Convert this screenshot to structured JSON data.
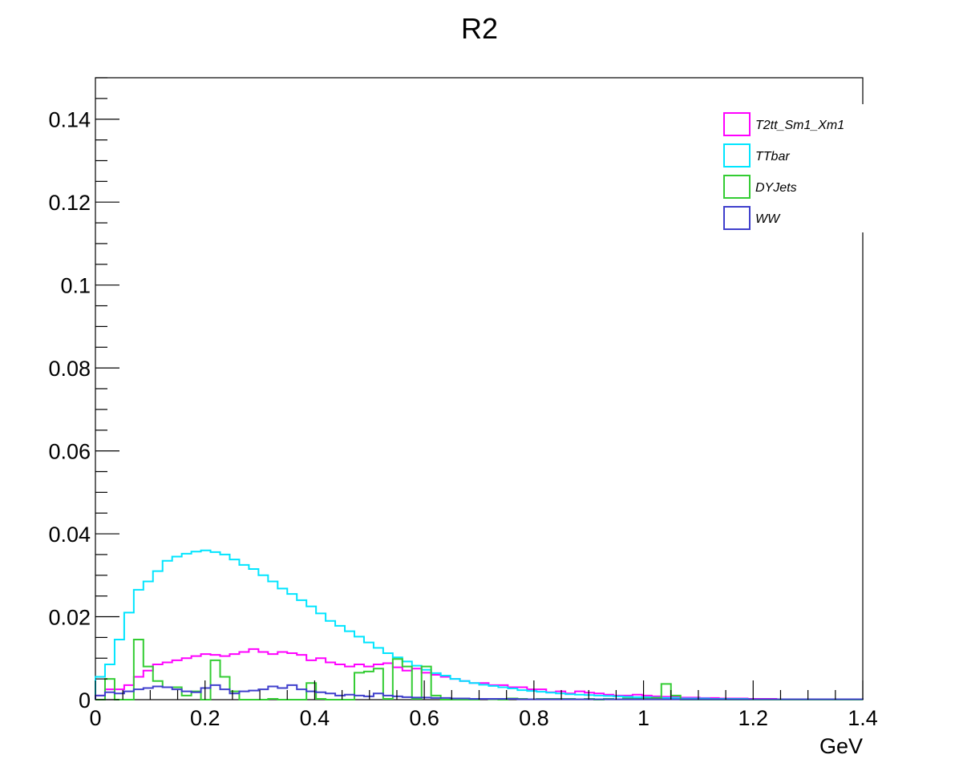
{
  "chart_data": {
    "type": "line",
    "title": "R2",
    "xlabel": "GeV",
    "ylabel": "",
    "xlim": [
      0,
      1.4
    ],
    "ylim": [
      0,
      0.15
    ],
    "x_ticks": [
      "0",
      "0.2",
      "0.4",
      "0.6",
      "0.8",
      "1",
      "1.2",
      "1.4"
    ],
    "y_ticks": [
      "0",
      "0.02",
      "0.04",
      "0.06",
      "0.08",
      "0.1",
      "0.12",
      "0.14"
    ],
    "x_tick_values": [
      0,
      0.2,
      0.4,
      0.6,
      0.8,
      1.0,
      1.2,
      1.4
    ],
    "y_tick_values": [
      0,
      0.02,
      0.04,
      0.06,
      0.08,
      0.1,
      0.12,
      0.14
    ],
    "grid": false,
    "legend_position": "top-right",
    "bin_edges_start": 0,
    "bin_width": 0.0175,
    "series": [
      {
        "name": "T2tt_Sm1_Xm1",
        "color": "#ff00ff",
        "values": [
          0.001,
          0.0025,
          0.0025,
          0.0035,
          0.0055,
          0.007,
          0.0085,
          0.009,
          0.0095,
          0.01,
          0.0105,
          0.011,
          0.0108,
          0.0105,
          0.011,
          0.0115,
          0.0122,
          0.0115,
          0.011,
          0.0115,
          0.0112,
          0.0108,
          0.0095,
          0.01,
          0.009,
          0.0085,
          0.008,
          0.0085,
          0.008,
          0.0085,
          0.0088,
          0.0078,
          0.007,
          0.0075,
          0.0065,
          0.006,
          0.0055,
          0.005,
          0.0045,
          0.004,
          0.004,
          0.0035,
          0.0035,
          0.003,
          0.003,
          0.0025,
          0.0025,
          0.0018,
          0.002,
          0.0015,
          0.002,
          0.0017,
          0.0015,
          0.0012,
          0.001,
          0.001,
          0.0012,
          0.001,
          0.0008,
          0.0007,
          0.0007,
          0.0005,
          0.0005,
          0.0004,
          0.0004,
          0.0003,
          0.0003,
          0.0003,
          0.0002,
          0.0002,
          0.0002,
          0.0001,
          0.0001,
          0.0001,
          0.0001,
          0.0001,
          0.0001,
          0.0001,
          0.0001,
          0.0001
        ]
      },
      {
        "name": "TTbar",
        "color": "#00e5ff",
        "values": [
          0.0055,
          0.0085,
          0.0145,
          0.021,
          0.0265,
          0.0285,
          0.031,
          0.0335,
          0.0345,
          0.0352,
          0.0357,
          0.036,
          0.0356,
          0.035,
          0.0338,
          0.0325,
          0.0315,
          0.03,
          0.0285,
          0.0268,
          0.0255,
          0.024,
          0.0225,
          0.0208,
          0.019,
          0.0178,
          0.0165,
          0.0152,
          0.0138,
          0.0125,
          0.0112,
          0.0102,
          0.0092,
          0.0082,
          0.0072,
          0.0064,
          0.0058,
          0.005,
          0.0045,
          0.004,
          0.0036,
          0.0033,
          0.003,
          0.0027,
          0.0023,
          0.0021,
          0.0019,
          0.0017,
          0.0015,
          0.0013,
          0.0012,
          0.0011,
          0.001,
          0.0009,
          0.0008,
          0.0007,
          0.0006,
          0.0006,
          0.0005,
          0.0004,
          0.0004,
          0.0003,
          0.0003,
          0.0003,
          0.0002,
          0.0002,
          0.0002,
          0.0002,
          0.0001,
          0.0001,
          0.0001,
          0.0001,
          0.0001,
          0.0001,
          0.0001,
          0.0001,
          0.0001,
          0.0001,
          0.0001,
          0.0001
        ]
      },
      {
        "name": "DYJets",
        "color": "#33cc33",
        "values": [
          0,
          0.005,
          0,
          0,
          0.0145,
          0.008,
          0.0045,
          0.003,
          0.003,
          0.001,
          0.002,
          0,
          0.0095,
          0.0055,
          0.002,
          0,
          0,
          0,
          0.0002,
          0,
          0,
          0,
          0.004,
          0.0002,
          0,
          0,
          0,
          0.0065,
          0.0068,
          0.0075,
          0.0002,
          0.0098,
          0.008,
          0.0002,
          0.008,
          0.001,
          0,
          0,
          0,
          0,
          0.0002,
          0.0001,
          0,
          0.0003,
          0.0002,
          0.0001,
          0.0002,
          0.0002,
          0.0002,
          0.0002,
          0.0001,
          0.0002,
          0,
          0.0002,
          0.0001,
          0.0003,
          0.0002,
          0.0003,
          0.0004,
          0.0038,
          0.001,
          0,
          0,
          0,
          0,
          0,
          0,
          0,
          0,
          0,
          0,
          0,
          0,
          0,
          0,
          0,
          0,
          0,
          0,
          0
        ]
      },
      {
        "name": "WW",
        "color": "#3f3fcc",
        "values": [
          0.001,
          0.0018,
          0.0015,
          0.002,
          0.0025,
          0.0028,
          0.0032,
          0.003,
          0.0025,
          0.002,
          0.0018,
          0.0028,
          0.0035,
          0.0025,
          0.0015,
          0.002,
          0.0022,
          0.0025,
          0.0032,
          0.0028,
          0.0035,
          0.0025,
          0.002,
          0.0018,
          0.0015,
          0.001,
          0.0012,
          0.001,
          0.0008,
          0.0015,
          0.001,
          0.0008,
          0.0006,
          0.0005,
          0.0005,
          0.0004,
          0.0004,
          0.0003,
          0.0003,
          0.0002,
          0.0002,
          0.0002,
          0.0002,
          0.0002,
          0.0001,
          0.0001,
          0.0001,
          0.0001,
          0.0001,
          0.0001,
          0.0001,
          0.0001,
          0.0001,
          0.0001,
          0.0001,
          0.0001,
          0.0001,
          0.0001,
          0.0001,
          0.0001,
          0.0001,
          0.0001,
          0.0001,
          0.0001,
          0.0001,
          0.0001,
          0.0001,
          0.0001,
          0.0001,
          0.0001,
          0.0001,
          0.0001,
          0.0001,
          0.0001,
          0.0001,
          0.0001,
          0.0001,
          0.0001,
          0.0001,
          0.0001
        ]
      }
    ]
  }
}
